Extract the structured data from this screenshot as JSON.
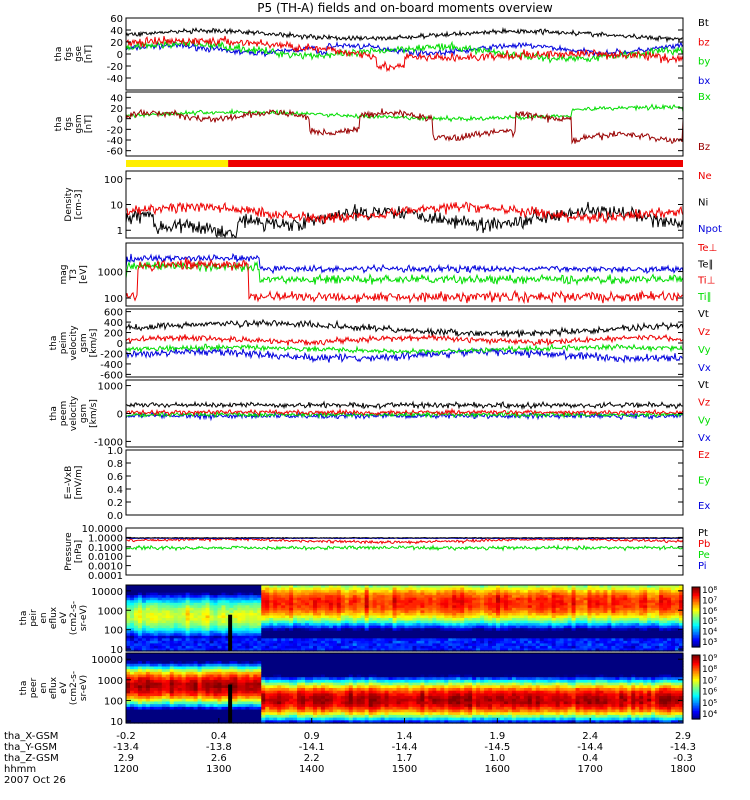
{
  "colors": {
    "black": "#000000",
    "red": "#ee0000",
    "green": "#00dd00",
    "blue": "#0000dd",
    "darkred": "#990000",
    "yellow": "#ffee00"
  },
  "chart_data": {
    "type": "line",
    "title": "P5 (TH-A) fields and on-board moments overview",
    "x_range": [
      1200,
      1800
    ],
    "bar_split": 1310,
    "panels": [
      {
        "id": "fgs",
        "ylabel": [
          "tha",
          "fgs",
          "gse",
          "[nT]"
        ],
        "ylim": [
          -60,
          60
        ],
        "ticks": [
          "60",
          "40",
          "20",
          "0",
          "-20",
          "-40"
        ],
        "tick_values": [
          60,
          40,
          20,
          0,
          -20,
          -40
        ],
        "legend": [
          {
            "text": "Bt",
            "color": "black"
          },
          {
            "text": "bz",
            "color": "red"
          },
          {
            "text": "by",
            "color": "green"
          },
          {
            "text": "bx",
            "color": "blue"
          }
        ]
      },
      {
        "id": "fgs-gsm",
        "ylabel": [
          "tha",
          "fgs",
          "gsm",
          "[nT]"
        ],
        "ylim": [
          -70,
          50
        ],
        "ticks": [
          "40",
          "20",
          "0",
          "-20",
          "-40",
          "-60"
        ],
        "tick_values": [
          40,
          20,
          0,
          -20,
          -40,
          -60
        ],
        "legend": [
          {
            "text": "Bx",
            "color": "green"
          },
          {
            "text": "Bz",
            "color": "darkred"
          }
        ]
      },
      {
        "id": "density",
        "ylabel": [
          "Density",
          "[cm-3]"
        ],
        "ylim": [
          0.5,
          200
        ],
        "log": true,
        "ticks": [
          "100",
          "10",
          "1"
        ],
        "tick_values": [
          100,
          10,
          1
        ],
        "legend": [
          {
            "text": "Ne",
            "color": "red"
          },
          {
            "text": "Ni",
            "color": "black"
          },
          {
            "text": "Npot",
            "color": "blue"
          }
        ]
      },
      {
        "id": "temp",
        "ylabel": [
          "mag",
          "T3",
          "[eV]"
        ],
        "ylim": [
          50,
          12000
        ],
        "log": true,
        "ticks": [
          "1000",
          "100"
        ],
        "tick_values": [
          1000,
          100
        ],
        "legend": [
          {
            "text": "Te⊥",
            "color": "red"
          },
          {
            "text": "Te∥",
            "color": "black"
          },
          {
            "text": "Ti⊥",
            "color": "red"
          },
          {
            "text": "Ti∥",
            "color": "green"
          }
        ]
      },
      {
        "id": "peim-vel",
        "ylabel": [
          "tha",
          "peim",
          "velocity",
          "gsm",
          "[km/s]"
        ],
        "ylim": [
          -650,
          650
        ],
        "ticks": [
          "600",
          "400",
          "200",
          "0",
          "-200",
          "-400",
          "-600"
        ],
        "tick_values": [
          600,
          400,
          200,
          0,
          -200,
          -400,
          -600
        ],
        "legend": [
          {
            "text": "Vt",
            "color": "black"
          },
          {
            "text": "Vz",
            "color": "red"
          },
          {
            "text": "Vy",
            "color": "green"
          },
          {
            "text": "Vx",
            "color": "blue"
          }
        ]
      },
      {
        "id": "peem-vel",
        "ylabel": [
          "tha",
          "peem",
          "velocity",
          "gsm",
          "[km/s]"
        ],
        "ylim": [
          -1200,
          1200
        ],
        "ticks": [
          "1000",
          "0",
          "-1000"
        ],
        "tick_values": [
          1000,
          0,
          -1000
        ],
        "legend": [
          {
            "text": "Vt",
            "color": "black"
          },
          {
            "text": "Vz",
            "color": "red"
          },
          {
            "text": "Vy",
            "color": "green"
          },
          {
            "text": "Vx",
            "color": "blue"
          }
        ]
      },
      {
        "id": "efield",
        "ylabel": [
          "E=-VxB",
          "[mV/m]"
        ],
        "ylim": [
          0,
          1
        ],
        "ticks": [
          "1.0",
          "0.8",
          "0.6",
          "0.4",
          "0.2",
          "0.0"
        ],
        "tick_values": [
          1,
          0.8,
          0.6,
          0.4,
          0.2,
          0
        ],
        "legend": [
          {
            "text": "Ez",
            "color": "red"
          },
          {
            "text": "Ey",
            "color": "green"
          },
          {
            "text": "Ex",
            "color": "blue"
          }
        ]
      },
      {
        "id": "pressure",
        "ylabel": [
          "Pressure",
          "[nPa]"
        ],
        "ylim": [
          0.0001,
          10
        ],
        "log": true,
        "ticks": [
          "10.0000",
          "1.0000",
          "0.1000",
          "0.0100",
          "0.0010",
          "0.0001"
        ],
        "tick_values": [
          10,
          1,
          0.1,
          0.01,
          0.001,
          0.0001
        ],
        "legend": [
          {
            "text": "Pt",
            "color": "black"
          },
          {
            "text": "Pb",
            "color": "red"
          },
          {
            "text": "Pe",
            "color": "green"
          },
          {
            "text": "Pi",
            "color": "blue"
          }
        ]
      },
      {
        "id": "peir",
        "ylabel": [
          "tha",
          "peir",
          "en",
          "eflux",
          "eV",
          "(cm2-s-",
          "sr-eV)"
        ],
        "ylim": [
          8,
          20000
        ],
        "log": true,
        "spectrogram": true,
        "ticks": [
          "10000",
          "1000",
          "100",
          "10"
        ],
        "tick_values": [
          10000,
          1000,
          100,
          10
        ],
        "colorbar": [
          "10⁸",
          "10⁷",
          "10⁶",
          "10⁵",
          "10⁴",
          "10³"
        ]
      },
      {
        "id": "peer",
        "ylabel": [
          "tha",
          "peer",
          "en",
          "eflux",
          "eV",
          "(cm2-s-",
          "sr-eV)"
        ],
        "ylim": [
          8,
          20000
        ],
        "log": true,
        "spectrogram": true,
        "ticks": [
          "10000",
          "1000",
          "100",
          "10"
        ],
        "tick_values": [
          10000,
          1000,
          100,
          10
        ],
        "colorbar": [
          "10⁹",
          "10⁸",
          "10⁷",
          "10⁶",
          "10⁵",
          "10⁴"
        ]
      }
    ],
    "x_axis": {
      "row_labels": [
        "tha_X-GSM",
        "tha_Y-GSM",
        "tha_Z-GSM",
        "hhmm",
        "2007 Oct 26"
      ],
      "ticks": [
        {
          "x": 1200,
          "X": "-0.2",
          "Y": "-13.4",
          "Z": "2.9",
          "hhmm": "1200"
        },
        {
          "x": 1300,
          "X": "0.4",
          "Y": "-13.8",
          "Z": "2.6",
          "hhmm": "1300"
        },
        {
          "x": 1400,
          "X": "0.9",
          "Y": "-14.1",
          "Z": "2.2",
          "hhmm": "1400"
        },
        {
          "x": 1500,
          "X": "1.4",
          "Y": "-14.4",
          "Z": "1.7",
          "hhmm": "1500"
        },
        {
          "x": 1600,
          "X": "1.9",
          "Y": "-14.5",
          "Z": "1.0",
          "hhmm": "1600"
        },
        {
          "x": 1700,
          "X": "2.4",
          "Y": "-14.4",
          "Z": "0.4",
          "hhmm": "1700"
        },
        {
          "x": 1800,
          "X": "2.9",
          "Y": "-14.3",
          "Z": "-0.3",
          "hhmm": "1800"
        }
      ]
    }
  }
}
